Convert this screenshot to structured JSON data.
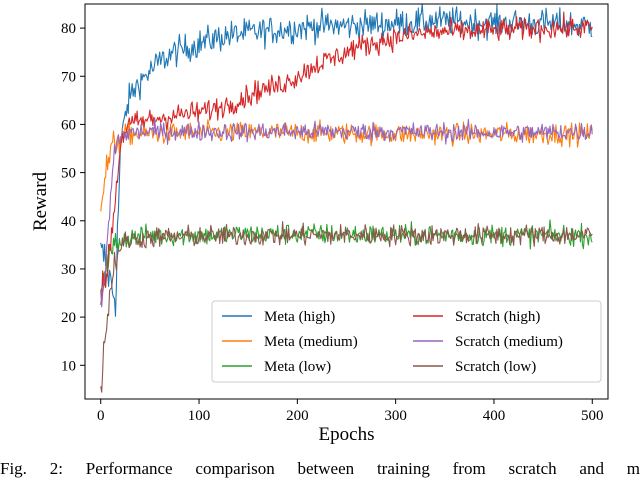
{
  "chart_data": {
    "type": "line",
    "xlabel": "Epochs",
    "ylabel": "Reward",
    "xlim": [
      -16,
      516
    ],
    "ylim": [
      3,
      85
    ],
    "xticks": [
      0,
      100,
      200,
      300,
      400,
      500
    ],
    "yticks": [
      10,
      20,
      30,
      40,
      50,
      60,
      70,
      80
    ],
    "grid": false,
    "legend_position": "lower-right",
    "series": [
      {
        "name": "Meta (high)",
        "color": "#1f77b4",
        "points": [
          [
            0,
            33
          ],
          [
            5,
            32
          ],
          [
            10,
            27
          ],
          [
            15,
            24
          ],
          [
            20,
            55
          ],
          [
            25,
            62
          ],
          [
            30,
            66
          ],
          [
            40,
            69
          ],
          [
            50,
            71
          ],
          [
            60,
            73
          ],
          [
            75,
            75
          ],
          [
            90,
            76
          ],
          [
            110,
            77.5
          ],
          [
            130,
            78.5
          ],
          [
            150,
            79
          ],
          [
            175,
            79.5
          ],
          [
            200,
            80
          ],
          [
            225,
            80.5
          ],
          [
            250,
            80.5
          ],
          [
            300,
            81
          ],
          [
            340,
            81.5
          ],
          [
            400,
            81
          ],
          [
            450,
            81
          ],
          [
            500,
            80.5
          ]
        ]
      },
      {
        "name": "Meta (medium)",
        "color": "#ff7f0e",
        "points": [
          [
            0,
            44
          ],
          [
            5,
            50
          ],
          [
            10,
            54
          ],
          [
            15,
            56
          ],
          [
            20,
            57.5
          ],
          [
            30,
            58
          ],
          [
            50,
            58
          ],
          [
            100,
            58.3
          ],
          [
            200,
            58.3
          ],
          [
            300,
            58
          ],
          [
            400,
            58
          ],
          [
            500,
            58
          ]
        ]
      },
      {
        "name": "Meta (low)",
        "color": "#2ca02c",
        "points": [
          [
            0,
            27
          ],
          [
            5,
            30
          ],
          [
            10,
            33
          ],
          [
            15,
            35
          ],
          [
            20,
            36
          ],
          [
            30,
            36.5
          ],
          [
            50,
            37
          ],
          [
            100,
            37
          ],
          [
            200,
            37.3
          ],
          [
            300,
            37
          ],
          [
            400,
            37
          ],
          [
            500,
            37
          ]
        ]
      },
      {
        "name": "Scratch (high)",
        "color": "#d62728",
        "points": [
          [
            0,
            23
          ],
          [
            5,
            28
          ],
          [
            10,
            36
          ],
          [
            15,
            45
          ],
          [
            20,
            56
          ],
          [
            25,
            59
          ],
          [
            30,
            60
          ],
          [
            50,
            61
          ],
          [
            80,
            62
          ],
          [
            100,
            62.5
          ],
          [
            120,
            63.5
          ],
          [
            140,
            65
          ],
          [
            160,
            67
          ],
          [
            180,
            68
          ],
          [
            200,
            70
          ],
          [
            220,
            72.5
          ],
          [
            240,
            74
          ],
          [
            260,
            76
          ],
          [
            280,
            77
          ],
          [
            300,
            78
          ],
          [
            330,
            79
          ],
          [
            360,
            79.3
          ],
          [
            400,
            79.5
          ],
          [
            450,
            80
          ],
          [
            500,
            80
          ]
        ]
      },
      {
        "name": "Scratch (medium)",
        "color": "#9467bd",
        "points": [
          [
            0,
            22
          ],
          [
            5,
            30
          ],
          [
            10,
            45
          ],
          [
            15,
            56
          ],
          [
            20,
            57.5
          ],
          [
            30,
            58.3
          ],
          [
            50,
            58.5
          ],
          [
            100,
            58.5
          ],
          [
            200,
            58.5
          ],
          [
            300,
            58.5
          ],
          [
            400,
            58.3
          ],
          [
            500,
            58.5
          ]
        ]
      },
      {
        "name": "Scratch (low)",
        "color": "#8c564b",
        "points": [
          [
            0,
            6
          ],
          [
            5,
            17
          ],
          [
            10,
            26
          ],
          [
            15,
            32
          ],
          [
            20,
            35
          ],
          [
            30,
            36
          ],
          [
            50,
            36.5
          ],
          [
            100,
            36.8
          ],
          [
            200,
            37
          ],
          [
            300,
            37
          ],
          [
            400,
            37
          ],
          [
            500,
            37
          ]
        ]
      }
    ],
    "noise": [
      1.5,
      1.1,
      1.1,
      1.2,
      1.0,
      1.1
    ]
  },
  "caption": "Fig. 2: Performance comparison between training from scratch and m"
}
